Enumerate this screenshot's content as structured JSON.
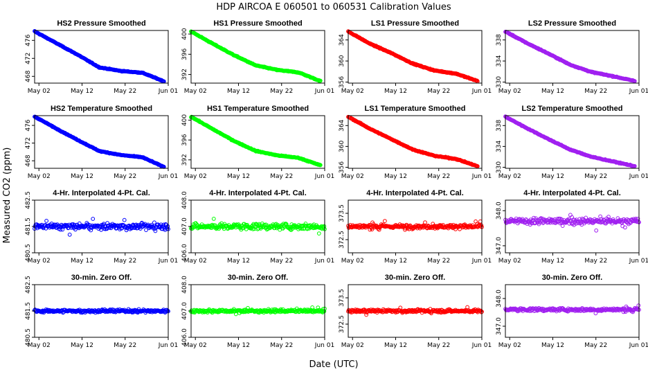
{
  "figure": {
    "title": "HDP    AIRCOA E    060501 to 060531    Calibration Values",
    "xlabel": "Date (UTC)",
    "ylabel": "Measured CO2 (ppm)"
  },
  "x_ticks": [
    "May 02",
    "May 12",
    "May 22",
    "Jun 01"
  ],
  "chart_data": [
    {
      "type": "scatter",
      "title": "HS2 Pressure Smoothed",
      "color": "#0000ff",
      "xlim": [
        "2006-05-01",
        "2006-06-01"
      ],
      "ylim": [
        466.5,
        478.2
      ],
      "yticks": [
        "468",
        "472",
        "476"
      ],
      "yticks_values": [
        468,
        472,
        476
      ],
      "series": [
        {
          "x": [
            "2006-05-01",
            "2006-05-06",
            "2006-05-11",
            "2006-05-16",
            "2006-05-21",
            "2006-05-26",
            "2006-05-31"
          ],
          "y": [
            478,
            475.4,
            472.8,
            470,
            469.2,
            468.8,
            466.9
          ]
        }
      ]
    },
    {
      "type": "scatter",
      "title": "HS1 Pressure Smoothed",
      "color": "#00ff00",
      "xlim": [
        "2006-05-01",
        "2006-06-01"
      ],
      "ylim": [
        390.3,
        400.7
      ],
      "yticks": [
        "392",
        "396",
        "400"
      ],
      "yticks_values": [
        392,
        396,
        400
      ],
      "series": [
        {
          "x": [
            "2006-05-01",
            "2006-05-06",
            "2006-05-11",
            "2006-05-16",
            "2006-05-21",
            "2006-05-26",
            "2006-05-31"
          ],
          "y": [
            400.5,
            398.1,
            395.8,
            393.8,
            392.9,
            392.4,
            390.7
          ]
        }
      ]
    },
    {
      "type": "scatter",
      "title": "LS1 Pressure Smoothed",
      "color": "#ff0000",
      "xlim": [
        "2006-05-01",
        "2006-06-01"
      ],
      "ylim": [
        355.8,
        365.8
      ],
      "yticks": [
        "356",
        "360",
        "364"
      ],
      "yticks_values": [
        356,
        360,
        364
      ],
      "series": [
        {
          "x": [
            "2006-05-01",
            "2006-05-06",
            "2006-05-11",
            "2006-05-16",
            "2006-05-21",
            "2006-05-26",
            "2006-05-31"
          ],
          "y": [
            365.6,
            363.3,
            361.5,
            359.5,
            358.2,
            357.6,
            356.2
          ]
        }
      ]
    },
    {
      "type": "scatter",
      "title": "LS2 Pressure Smoothed",
      "color": "#a020f0",
      "xlim": [
        "2006-05-01",
        "2006-06-01"
      ],
      "ylim": [
        329.8,
        339.8
      ],
      "yticks": [
        "330",
        "334",
        "338"
      ],
      "yticks_values": [
        330,
        334,
        338
      ],
      "series": [
        {
          "x": [
            "2006-05-01",
            "2006-05-06",
            "2006-05-11",
            "2006-05-16",
            "2006-05-21",
            "2006-05-26",
            "2006-05-31"
          ],
          "y": [
            339.6,
            337.4,
            335.4,
            333.3,
            331.9,
            331.1,
            330.2
          ]
        }
      ]
    },
    {
      "type": "scatter",
      "title": "HS2 Temperature Smoothed",
      "color": "#0000ff",
      "xlim": [
        "2006-05-01",
        "2006-06-01"
      ],
      "ylim": [
        466.3,
        478.2
      ],
      "yticks": [
        "468",
        "472",
        "476"
      ],
      "yticks_values": [
        468,
        472,
        476
      ],
      "series": [
        {
          "x": [
            "2006-05-01",
            "2006-05-06",
            "2006-05-11",
            "2006-05-16",
            "2006-05-21",
            "2006-05-26",
            "2006-05-31"
          ],
          "y": [
            478,
            475.3,
            472.7,
            470.2,
            469.3,
            468.8,
            466.6
          ]
        }
      ]
    },
    {
      "type": "scatter",
      "title": "HS1 Temperature Smoothed",
      "color": "#00ff00",
      "xlim": [
        "2006-05-01",
        "2006-06-01"
      ],
      "ylim": [
        390.3,
        400.9
      ],
      "yticks": [
        "392",
        "396",
        "400"
      ],
      "yticks_values": [
        392,
        396,
        400
      ],
      "series": [
        {
          "x": [
            "2006-05-01",
            "2006-05-06",
            "2006-05-11",
            "2006-05-16",
            "2006-05-21",
            "2006-05-26",
            "2006-05-31"
          ],
          "y": [
            400.7,
            398.2,
            395.8,
            393.8,
            392.9,
            392.4,
            390.9
          ]
        }
      ]
    },
    {
      "type": "scatter",
      "title": "LS1 Temperature Smoothed",
      "color": "#ff0000",
      "xlim": [
        "2006-05-01",
        "2006-06-01"
      ],
      "ylim": [
        355.8,
        365.9
      ],
      "yticks": [
        "356",
        "360",
        "364"
      ],
      "yticks_values": [
        356,
        360,
        364
      ],
      "series": [
        {
          "x": [
            "2006-05-01",
            "2006-05-06",
            "2006-05-11",
            "2006-05-16",
            "2006-05-21",
            "2006-05-26",
            "2006-05-31"
          ],
          "y": [
            365.7,
            363.4,
            361.4,
            359.4,
            358.2,
            357.6,
            356.2
          ]
        }
      ]
    },
    {
      "type": "scatter",
      "title": "LS2 Temperature Smoothed",
      "color": "#a020f0",
      "xlim": [
        "2006-05-01",
        "2006-06-01"
      ],
      "ylim": [
        329.8,
        339.9
      ],
      "yticks": [
        "330",
        "334",
        "338"
      ],
      "yticks_values": [
        330,
        334,
        338
      ],
      "series": [
        {
          "x": [
            "2006-05-01",
            "2006-05-06",
            "2006-05-11",
            "2006-05-16",
            "2006-05-21",
            "2006-05-26",
            "2006-05-31"
          ],
          "y": [
            339.7,
            337.5,
            335.4,
            333.4,
            332.0,
            331.1,
            330.2
          ]
        }
      ]
    },
    {
      "type": "scatter",
      "title": "4-Hr. Interpolated 4-Pt. Cal.",
      "color": "#0000ff",
      "xlim": [
        "2006-05-01",
        "2006-06-01"
      ],
      "ylim": [
        480.5,
        482.5
      ],
      "yticks": [
        "480.5",
        "481.5",
        "482.5"
      ],
      "yticks_values": [
        480.5,
        481.5,
        482.5
      ],
      "series": [
        {
          "x": [
            "2006-05-01",
            "2006-06-01"
          ],
          "y": [
            481.5,
            481.5
          ],
          "spread": 0.1
        }
      ]
    },
    {
      "type": "scatter",
      "title": "4-Hr. Interpolated 4-Pt. Cal.",
      "color": "#00ff00",
      "xlim": [
        "2006-05-01",
        "2006-06-01"
      ],
      "ylim": [
        406.0,
        408.0
      ],
      "yticks": [
        "406.0",
        "407.0",
        "408.0"
      ],
      "yticks_values": [
        406.0,
        407.0,
        408.0
      ],
      "series": [
        {
          "x": [
            "2006-05-01",
            "2006-06-01"
          ],
          "y": [
            407.0,
            407.0
          ],
          "spread": 0.1
        }
      ]
    },
    {
      "type": "scatter",
      "title": "4-Hr. Interpolated 4-Pt. Cal.",
      "color": "#ff0000",
      "xlim": [
        "2006-05-01",
        "2006-06-01"
      ],
      "ylim": [
        372.0,
        374.0
      ],
      "yticks": [
        "372.5",
        "373.5"
      ],
      "yticks_values": [
        372.5,
        373.5
      ],
      "series": [
        {
          "x": [
            "2006-05-01",
            "2006-06-01"
          ],
          "y": [
            373.0,
            373.0
          ],
          "spread": 0.07
        }
      ]
    },
    {
      "type": "scatter",
      "title": "4-Hr. Interpolated 4-Pt. Cal.",
      "color": "#a020f0",
      "xlim": [
        "2006-05-01",
        "2006-06-01"
      ],
      "ylim": [
        346.8,
        348.3
      ],
      "yticks": [
        "347.0",
        "348.0"
      ],
      "yticks_values": [
        347.0,
        348.0
      ],
      "series": [
        {
          "x": [
            "2006-05-01",
            "2006-06-01"
          ],
          "y": [
            347.7,
            347.7
          ],
          "spread": 0.08
        }
      ]
    },
    {
      "type": "scatter",
      "title": "30-min. Zero Off.",
      "color": "#0000ff",
      "xlim": [
        "2006-05-01",
        "2006-06-01"
      ],
      "ylim": [
        480.5,
        482.5
      ],
      "yticks": [
        "480.5",
        "481.5",
        "482.5"
      ],
      "yticks_values": [
        480.5,
        481.5,
        482.5
      ],
      "series": [
        {
          "x": [
            "2006-05-01",
            "2006-06-01"
          ],
          "y": [
            481.5,
            481.5
          ],
          "spread": 0.05
        }
      ]
    },
    {
      "type": "scatter",
      "title": "30-min. Zero Off.",
      "color": "#00ff00",
      "xlim": [
        "2006-05-01",
        "2006-06-01"
      ],
      "ylim": [
        406.0,
        408.0
      ],
      "yticks": [
        "406.0",
        "407.0",
        "408.0"
      ],
      "yticks_values": [
        406.0,
        407.0,
        408.0
      ],
      "series": [
        {
          "x": [
            "2006-05-01",
            "2006-06-01"
          ],
          "y": [
            407.0,
            407.0
          ],
          "spread": 0.05
        }
      ]
    },
    {
      "type": "scatter",
      "title": "30-min. Zero Off.",
      "color": "#ff0000",
      "xlim": [
        "2006-05-01",
        "2006-06-01"
      ],
      "ylim": [
        372.0,
        374.0
      ],
      "yticks": [
        "372.5",
        "373.5"
      ],
      "yticks_values": [
        372.5,
        373.5
      ],
      "series": [
        {
          "x": [
            "2006-05-01",
            "2006-06-01"
          ],
          "y": [
            373.0,
            373.0
          ],
          "spread": 0.05
        }
      ]
    },
    {
      "type": "scatter",
      "title": "30-min. Zero Off.",
      "color": "#a020f0",
      "xlim": [
        "2006-05-01",
        "2006-06-01"
      ],
      "ylim": [
        346.6,
        348.5
      ],
      "yticks": [
        "347.0",
        "348.0"
      ],
      "yticks_values": [
        347.0,
        348.0
      ],
      "series": [
        {
          "x": [
            "2006-05-01",
            "2006-06-01"
          ],
          "y": [
            347.6,
            347.6
          ],
          "spread": 0.05
        }
      ]
    }
  ]
}
